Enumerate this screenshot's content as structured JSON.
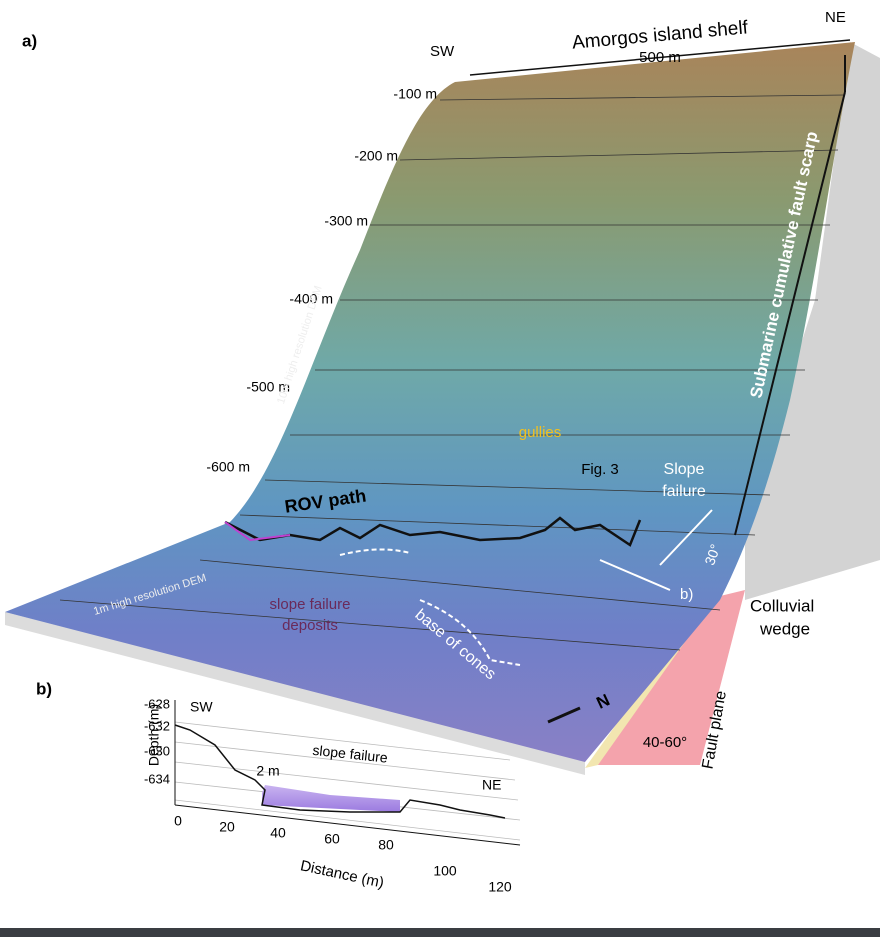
{
  "panel_a": {
    "label": "a)",
    "shelf": "Amorgos island shelf",
    "sw": "SW",
    "ne": "NE",
    "scale": "500 m",
    "depths": [
      "-100 m",
      "-200 m",
      "-300 m",
      "-400 m",
      "-500 m",
      "-600 m"
    ],
    "dem_10m": "10m high resolution DEM",
    "dem_1m": "1m high resolution DEM",
    "scarp": "Submarine cumulative fault scarp",
    "gullies": "gullies",
    "fig3": "Fig. 3",
    "slope_failure": [
      "Slope",
      "failure"
    ],
    "rov": "ROV path",
    "deposits": [
      "slope failure",
      "deposits"
    ],
    "cones": "base of cones",
    "b_marker": "b)",
    "angle_30": "30°",
    "colluvial": [
      "Colluvial",
      "wedge"
    ],
    "fault_plane": "Fault plane",
    "angle_fault": "40-60°",
    "north": "N"
  },
  "panel_b": {
    "label": "b)",
    "y_title": "Depth (m)",
    "y_labels": [
      "-628",
      "-632",
      "-630",
      "-634"
    ],
    "sw": "SW",
    "ne": "NE",
    "step": "2 m",
    "slope_failure": "slope failure",
    "x_labels": [
      "0",
      "20",
      "40",
      "60",
      "80",
      "100",
      "120"
    ],
    "x_title": "Distance (m)"
  }
}
